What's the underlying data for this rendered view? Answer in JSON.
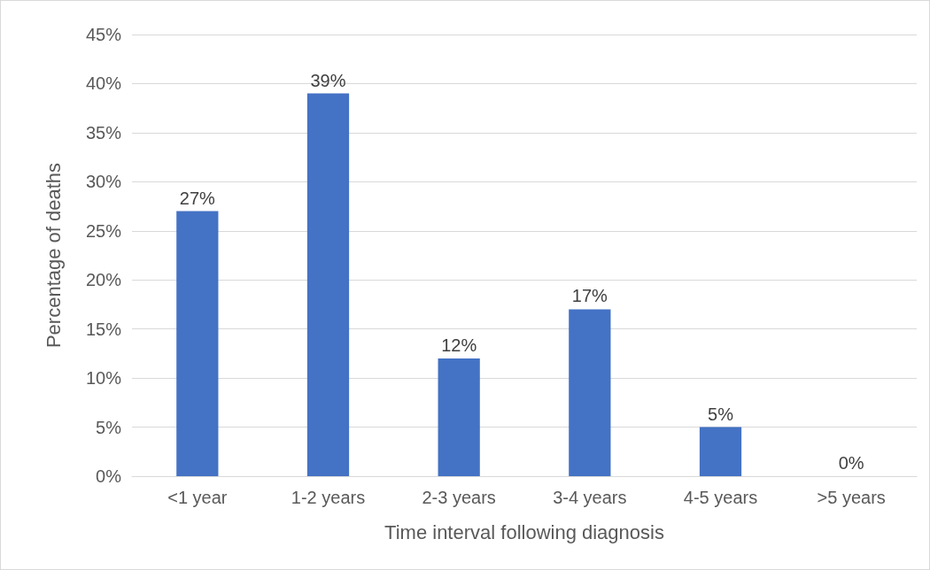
{
  "chart_data": {
    "type": "bar",
    "xlabel": "Time interval following diagnosis",
    "ylabel": "Percentage of deaths",
    "categories": [
      "<1 year",
      "1-2 years",
      "2-3 years",
      "3-4 years",
      "4-5 years",
      ">5 years"
    ],
    "values": [
      27,
      39,
      12,
      17,
      5,
      0
    ],
    "value_labels": [
      "27%",
      "39%",
      "12%",
      "17%",
      "5%",
      "0%"
    ],
    "color": "#4472c4",
    "ylim": [
      0,
      45
    ],
    "yticks": [
      {
        "value": 0,
        "label": "0%"
      },
      {
        "value": 5,
        "label": "5%"
      },
      {
        "value": 10,
        "label": "10%"
      },
      {
        "value": 15,
        "label": "15%"
      },
      {
        "value": 20,
        "label": "20%"
      },
      {
        "value": 25,
        "label": "25%"
      },
      {
        "value": 30,
        "label": "30%"
      },
      {
        "value": 35,
        "label": "35%"
      },
      {
        "value": 40,
        "label": "40%"
      },
      {
        "value": 45,
        "label": "45%"
      }
    ],
    "grid": "y"
  }
}
